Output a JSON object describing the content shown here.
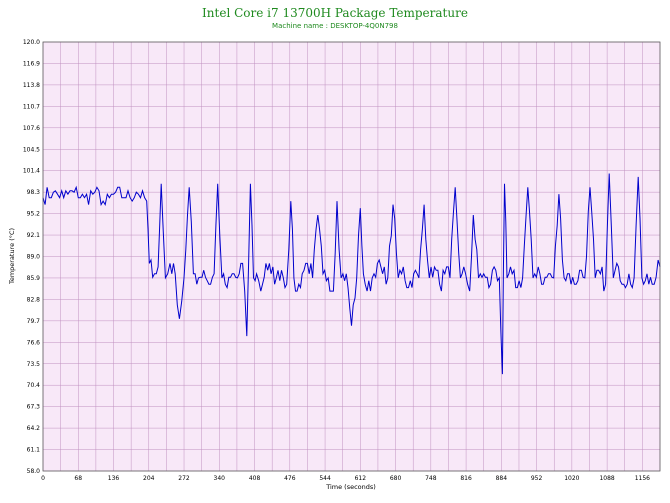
{
  "chart_data": {
    "type": "line",
    "title": "Intel Core i7 13700H Package Temperature",
    "subtitle": "Machine name : DESKTOP-4Q0N798",
    "xlabel": "Time (seconds)",
    "ylabel": "Temperature (°C)",
    "xlim": [
      0,
      1190
    ],
    "ylim": [
      58.0,
      120.0
    ],
    "x_ticks": [
      "0",
      "68",
      "136",
      "204",
      "272",
      "340",
      "408",
      "476",
      "544",
      "612",
      "680",
      "748",
      "816",
      "884",
      "952",
      "1020",
      "1088",
      "1156"
    ],
    "y_ticks": [
      "58.0",
      "61.1",
      "64.2",
      "67.3",
      "70.4",
      "73.5",
      "76.6",
      "79.7",
      "82.8",
      "85.9",
      "89.0",
      "92.1",
      "95.2",
      "98.3",
      "101.4",
      "104.5",
      "107.6",
      "110.7",
      "113.8",
      "116.9",
      "120.0"
    ],
    "grid": true,
    "colors": {
      "line": "#0000cc",
      "plot_bg": "#f8e8f8",
      "grid": "#c090c0",
      "title": "#1f8a1f"
    },
    "series": [
      {
        "x": [
          0,
          20,
          40,
          60,
          80,
          100,
          120,
          140,
          160,
          180,
          200,
          205,
          215,
          222,
          228,
          236,
          245,
          255,
          263,
          272,
          282,
          290,
          300,
          310,
          320,
          330,
          337,
          345,
          355,
          365,
          375,
          385,
          393,
          400,
          406,
          412,
          420,
          430,
          440,
          450,
          460,
          470,
          478,
          484,
          490,
          500,
          510,
          520,
          530,
          540,
          550,
          560,
          567,
          575,
          585,
          595,
          605,
          612,
          618,
          625,
          635,
          645,
          655,
          665,
          675,
          685,
          695,
          705,
          715,
          725,
          735,
          745,
          755,
          765,
          775,
          785,
          795,
          805,
          815,
          823,
          830,
          840,
          850,
          860,
          870,
          880,
          886,
          890,
          895,
          905,
          915,
          925,
          935,
          945,
          955,
          965,
          975,
          985,
          995,
          1005,
          1015,
          1025,
          1035,
          1045,
          1055,
          1065,
          1075,
          1085,
          1092,
          1100,
          1110,
          1120,
          1130,
          1140,
          1148,
          1155,
          1165,
          1175,
          1190
        ],
        "y": [
          97.5,
          98.3,
          97.5,
          98.3,
          97.5,
          98.3,
          96.5,
          98.3,
          97.5,
          98.3,
          97.0,
          88.0,
          86.5,
          87.5,
          99.5,
          85.9,
          88.0,
          86.5,
          80.0,
          85.9,
          99.0,
          86.5,
          85.9,
          87.0,
          85.0,
          86.5,
          99.5,
          85.9,
          84.5,
          86.5,
          85.9,
          88.0,
          77.5,
          99.5,
          85.9,
          86.5,
          84.0,
          88.0,
          86.5,
          85.9,
          87.0,
          85.0,
          97.0,
          85.9,
          84.0,
          86.5,
          88.0,
          85.9,
          95.0,
          86.5,
          85.9,
          84.0,
          97.0,
          85.9,
          86.5,
          79.0,
          85.9,
          96.0,
          86.5,
          84.0,
          85.9,
          88.0,
          86.5,
          85.9,
          96.5,
          85.9,
          87.5,
          84.5,
          86.5,
          85.9,
          96.5,
          85.9,
          87.5,
          85.0,
          86.5,
          85.9,
          99.0,
          85.9,
          86.5,
          84.0,
          95.0,
          85.9,
          86.5,
          84.5,
          87.5,
          85.9,
          72.0,
          99.5,
          85.9,
          86.5,
          84.5,
          85.9,
          99.0,
          85.9,
          87.5,
          85.0,
          86.5,
          85.9,
          98.0,
          85.9,
          86.5,
          85.0,
          87.0,
          85.9,
          99.0,
          85.9,
          86.5,
          85.0,
          101.0,
          85.9,
          87.5,
          85.0,
          86.5,
          85.9,
          100.5,
          85.9,
          86.5,
          85.0,
          87.5
        ]
      }
    ]
  }
}
